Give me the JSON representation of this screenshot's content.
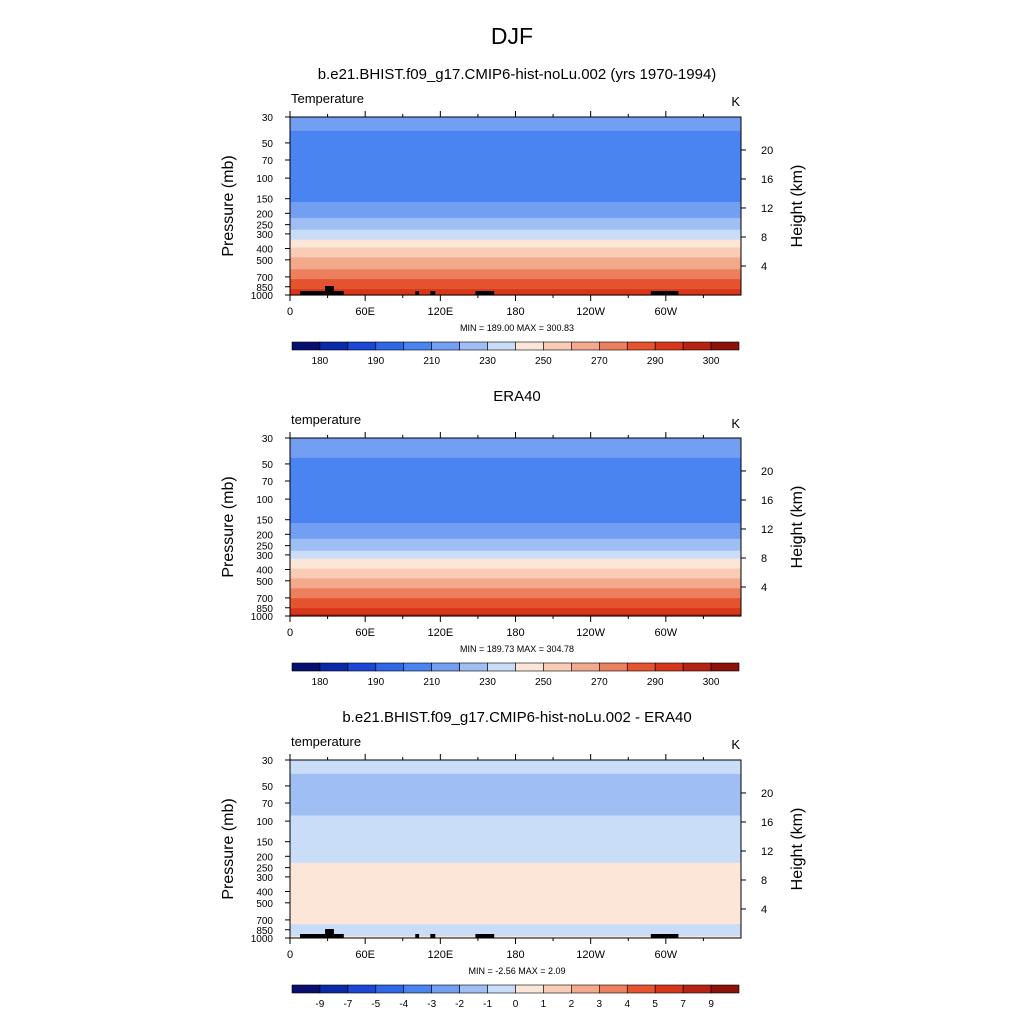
{
  "figure": {
    "title": "DJF"
  },
  "chart_data": [
    {
      "type": "heatmap",
      "title": "b.e21.BHIST.f09_g17.CMIP6-hist-noLu.002 (yrs 1970-1994)",
      "variable": "Temperature",
      "units": "K",
      "ylabel": "Pressure (mb)",
      "ylabel_right": "Height (km)",
      "x_ticks": [
        "0",
        "60E",
        "120E",
        "180",
        "120W",
        "60W"
      ],
      "y_ticks": [
        "30",
        "50",
        "70",
        "100",
        "150",
        "200",
        "250",
        "300",
        "400",
        "500",
        "700",
        "850",
        "1000"
      ],
      "height_ticks": [
        "4",
        "8",
        "12",
        "16",
        "20"
      ],
      "stats": "MIN = 189.00  MAX = 300.83",
      "min": 189.0,
      "max": 300.83,
      "colorbar_labels": [
        "180",
        "190",
        "210",
        "230",
        "250",
        "270",
        "290",
        "300"
      ],
      "colorbar_levels": [
        175,
        180,
        185,
        190,
        200,
        210,
        220,
        230,
        240,
        250,
        260,
        270,
        280,
        290,
        295,
        300,
        305
      ],
      "profile": {
        "pressure": [
          30,
          50,
          70,
          100,
          150,
          200,
          250,
          300,
          400,
          500,
          700,
          850,
          1000
        ],
        "temperature": [
          212,
          208,
          204,
          203,
          208,
          216,
          225,
          235,
          250,
          262,
          278,
          288,
          295
        ]
      },
      "topography": true
    },
    {
      "type": "heatmap",
      "title": "ERA40",
      "variable": "temperature",
      "units": "K",
      "ylabel": "Pressure (mb)",
      "ylabel_right": "Height (km)",
      "x_ticks": [
        "0",
        "60E",
        "120E",
        "180",
        "120W",
        "60W"
      ],
      "y_ticks": [
        "30",
        "50",
        "70",
        "100",
        "150",
        "200",
        "250",
        "300",
        "400",
        "500",
        "700",
        "850",
        "1000"
      ],
      "height_ticks": [
        "4",
        "8",
        "12",
        "16",
        "20"
      ],
      "stats": "MIN = 189.73  MAX = 304.78",
      "min": 189.73,
      "max": 304.78,
      "colorbar_labels": [
        "180",
        "190",
        "210",
        "230",
        "250",
        "270",
        "290",
        "300"
      ],
      "colorbar_levels": [
        175,
        180,
        185,
        190,
        200,
        210,
        220,
        230,
        240,
        250,
        260,
        270,
        280,
        290,
        295,
        300,
        305
      ],
      "profile": {
        "pressure": [
          30,
          50,
          70,
          100,
          150,
          200,
          250,
          300,
          400,
          500,
          700,
          850,
          1000
        ],
        "temperature": [
          213,
          209,
          205,
          204,
          209,
          216,
          225,
          236,
          251,
          263,
          279,
          290,
          298
        ]
      },
      "topography": false
    },
    {
      "type": "heatmap",
      "title": "b.e21.BHIST.f09_g17.CMIP6-hist-noLu.002 - ERA40",
      "variable": "temperature",
      "units": "K",
      "ylabel": "Pressure (mb)",
      "ylabel_right": "Height (km)",
      "x_ticks": [
        "0",
        "60E",
        "120E",
        "180",
        "120W",
        "60W"
      ],
      "y_ticks": [
        "30",
        "50",
        "70",
        "100",
        "150",
        "200",
        "250",
        "300",
        "400",
        "500",
        "700",
        "850",
        "1000"
      ],
      "height_ticks": [
        "4",
        "8",
        "12",
        "16",
        "20"
      ],
      "stats": "MIN =  -2.56  MAX =   2.09",
      "min": -2.56,
      "max": 2.09,
      "colorbar_labels": [
        "-9",
        "-7",
        "-5",
        "-4",
        "-3",
        "-2",
        "-1",
        "0",
        "1",
        "2",
        "3",
        "4",
        "5",
        "7",
        "9"
      ],
      "colorbar_levels": [
        -11,
        -9,
        -7,
        -5,
        -4,
        -3,
        -2,
        -1,
        0,
        1,
        2,
        3,
        4,
        5,
        7,
        9,
        11
      ],
      "profile": {
        "pressure": [
          30,
          50,
          70,
          100,
          150,
          200,
          250,
          300,
          400,
          500,
          700,
          850,
          1000
        ],
        "temperature": [
          -0.5,
          -1.5,
          -1.8,
          -0.6,
          -0.8,
          -0.5,
          0.3,
          0.5,
          0.7,
          0.5,
          0.3,
          -0.4,
          0.2
        ]
      },
      "topography": true
    }
  ],
  "colors": {
    "scale": [
      "#08106f",
      "#0a2aa8",
      "#1b46d6",
      "#2e68e8",
      "#4a84f0",
      "#739ff2",
      "#9fbef4",
      "#c9dcf8",
      "#fbe6d8",
      "#f8ccb5",
      "#f3a98b",
      "#ec7f5d",
      "#e5532f",
      "#d8361a",
      "#b62312",
      "#8c1209"
    ],
    "outline": "#000000",
    "background": "#ffffff"
  }
}
